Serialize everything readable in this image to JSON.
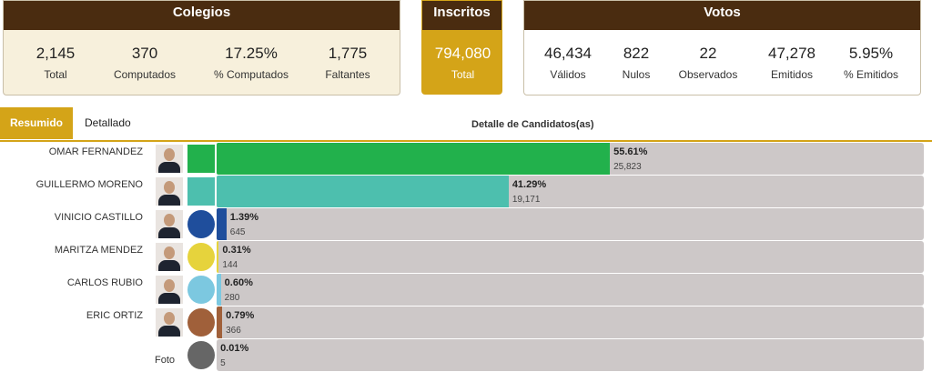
{
  "colegios": {
    "title": "Colegios",
    "stats": [
      {
        "value": "2,145",
        "label": "Total"
      },
      {
        "value": "370",
        "label": "Computados"
      },
      {
        "value": "17.25%",
        "label": "% Computados"
      },
      {
        "value": "1,775",
        "label": "Faltantes"
      }
    ]
  },
  "inscritos": {
    "title": "Inscritos",
    "value": "794,080",
    "label": "Total"
  },
  "votos": {
    "title": "Votos",
    "stats": [
      {
        "value": "46,434",
        "label": "Válidos"
      },
      {
        "value": "822",
        "label": "Nulos"
      },
      {
        "value": "22",
        "label": "Observados"
      },
      {
        "value": "47,278",
        "label": "Emitidos"
      },
      {
        "value": "5.95%",
        "label": "% Emitidos"
      }
    ]
  },
  "tabs": [
    "Resumido",
    "Detallado"
  ],
  "section_title": "Detalle de Candidatos(as)",
  "candidates": [
    {
      "name": "OMAR FERNANDEZ",
      "percent": 55.61,
      "percent_label": "55.61%",
      "votes": "25,823",
      "color": "#22b14c"
    },
    {
      "name": "GUILLERMO MORENO",
      "percent": 41.29,
      "percent_label": "41.29%",
      "votes": "19,171",
      "color": "#4dbfae"
    },
    {
      "name": "VINICIO CASTILLO",
      "percent": 1.39,
      "percent_label": "1.39%",
      "votes": "645",
      "color": "#1f4e9c"
    },
    {
      "name": "MARITZA MENDEZ",
      "percent": 0.31,
      "percent_label": "0.31%",
      "votes": "144",
      "color": "#e6d33c"
    },
    {
      "name": "CARLOS RUBIO",
      "percent": 0.6,
      "percent_label": "0.60%",
      "votes": "280",
      "color": "#7cc8e0"
    },
    {
      "name": "ERIC ORTIZ",
      "percent": 0.79,
      "percent_label": "0.79%",
      "votes": "366",
      "color": "#a0603a"
    },
    {
      "photo_alt": "Foto",
      "percent": 0.01,
      "percent_label": "0.01%",
      "votes": "5",
      "color": "#666666"
    }
  ]
}
